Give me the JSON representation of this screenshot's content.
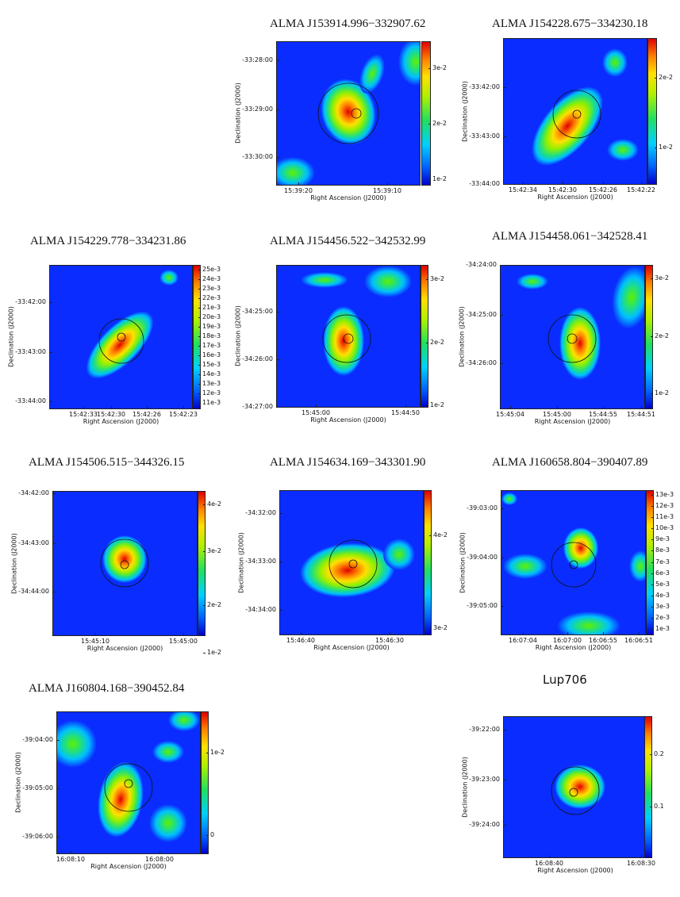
{
  "axes": {
    "xlabel": "Right Ascension (J2000)",
    "ylabel": "Declination (J2000)"
  },
  "panels": [
    {
      "title": "ALMA J153914.996−332907.62",
      "yticks": [
        "-33:28:00",
        "-33:29:00",
        "-33:30:00"
      ],
      "xticks": [
        "15:39:20",
        "15:39:10"
      ],
      "cticks": [
        "3e-2",
        "2e-2",
        "1e-2"
      ]
    },
    {
      "title": "ALMA J154228.675−334230.18",
      "yticks": [
        "-33:42:00",
        "-33:43:00",
        "-33:44:00"
      ],
      "xticks": [
        "15:42:34",
        "15:42:30",
        "15:42:26",
        "15:42:22"
      ],
      "cticks": [
        "2e-2",
        "1e-2"
      ]
    },
    {
      "title": "ALMA J154229.778−334231.86",
      "yticks": [
        "-33:42:00",
        "-33:43:00",
        "-33:44:00"
      ],
      "xticks": [
        "15:42:33",
        "15:42:30",
        "15:42:26",
        "15:42:23"
      ],
      "cticks": [
        "25e-3",
        "24e-3",
        "23e-3",
        "22e-3",
        "21e-3",
        "20e-3",
        "19e-3",
        "18e-3",
        "17e-3",
        "16e-3",
        "15e-3",
        "14e-3",
        "13e-3",
        "12e-3",
        "11e-3"
      ]
    },
    {
      "title": "ALMA J154456.522−342532.99",
      "yticks": [
        "-34:25:00",
        "-34:26:00",
        "-34:27:00"
      ],
      "xticks": [
        "15:45:00",
        "15:44:50"
      ],
      "cticks": [
        "3e-2",
        "2e-2",
        "1e-2"
      ]
    },
    {
      "title": "ALMA J154458.061−342528.41",
      "yticks": [
        "-34:24:00",
        "-34:25:00",
        "-34:26:00"
      ],
      "xticks": [
        "15:45:04",
        "15:45:00",
        "15:44:55",
        "15:44:51"
      ],
      "cticks": [
        "3e-2",
        "2e-2",
        "1e-2"
      ]
    },
    {
      "title": "ALMA J154506.515−344326.15",
      "yticks": [
        "-34:42:00",
        "-34:43:00",
        "-34:44:00"
      ],
      "xticks": [
        "15:45:10",
        "15:45:00"
      ],
      "cticks": [
        "4e-2",
        "3e-2",
        "2e-2",
        "1e-2"
      ]
    },
    {
      "title": "ALMA J154634.169−343301.90",
      "yticks": [
        "-34:32:00",
        "-34:33:00",
        "-34:34:00"
      ],
      "xticks": [
        "15:46:40",
        "15:46:30"
      ],
      "cticks": [
        "4e-2",
        "3e-2"
      ]
    },
    {
      "title": "ALMA J160658.804−390407.89",
      "yticks": [
        "-39:03:00",
        "-39:04:00",
        "-39:05:00"
      ],
      "xticks": [
        "16:07:04",
        "16:07:00",
        "16:06:55",
        "16:06:51"
      ],
      "cticks": [
        "13e-3",
        "12e-3",
        "11e-3",
        "10e-3",
        "9e-3",
        "8e-3",
        "7e-3",
        "6e-3",
        "5e-3",
        "4e-3",
        "3e-3",
        "2e-3",
        "1e-3"
      ]
    },
    {
      "title": "ALMA J160804.168−390452.84",
      "yticks": [
        "-39:04:00",
        "-39:05:00",
        "-39:06:00"
      ],
      "xticks": [
        "16:08:10",
        "16:08:00"
      ],
      "cticks": [
        "1e-2",
        "0"
      ]
    },
    {
      "title": "Lup706",
      "yticks": [
        "-39:22:00",
        "-39:23:00",
        "-39:24:00"
      ],
      "xticks": [
        "16:08:40",
        "16:08:30"
      ],
      "cticks": [
        "0.2",
        "0.1"
      ]
    }
  ]
}
